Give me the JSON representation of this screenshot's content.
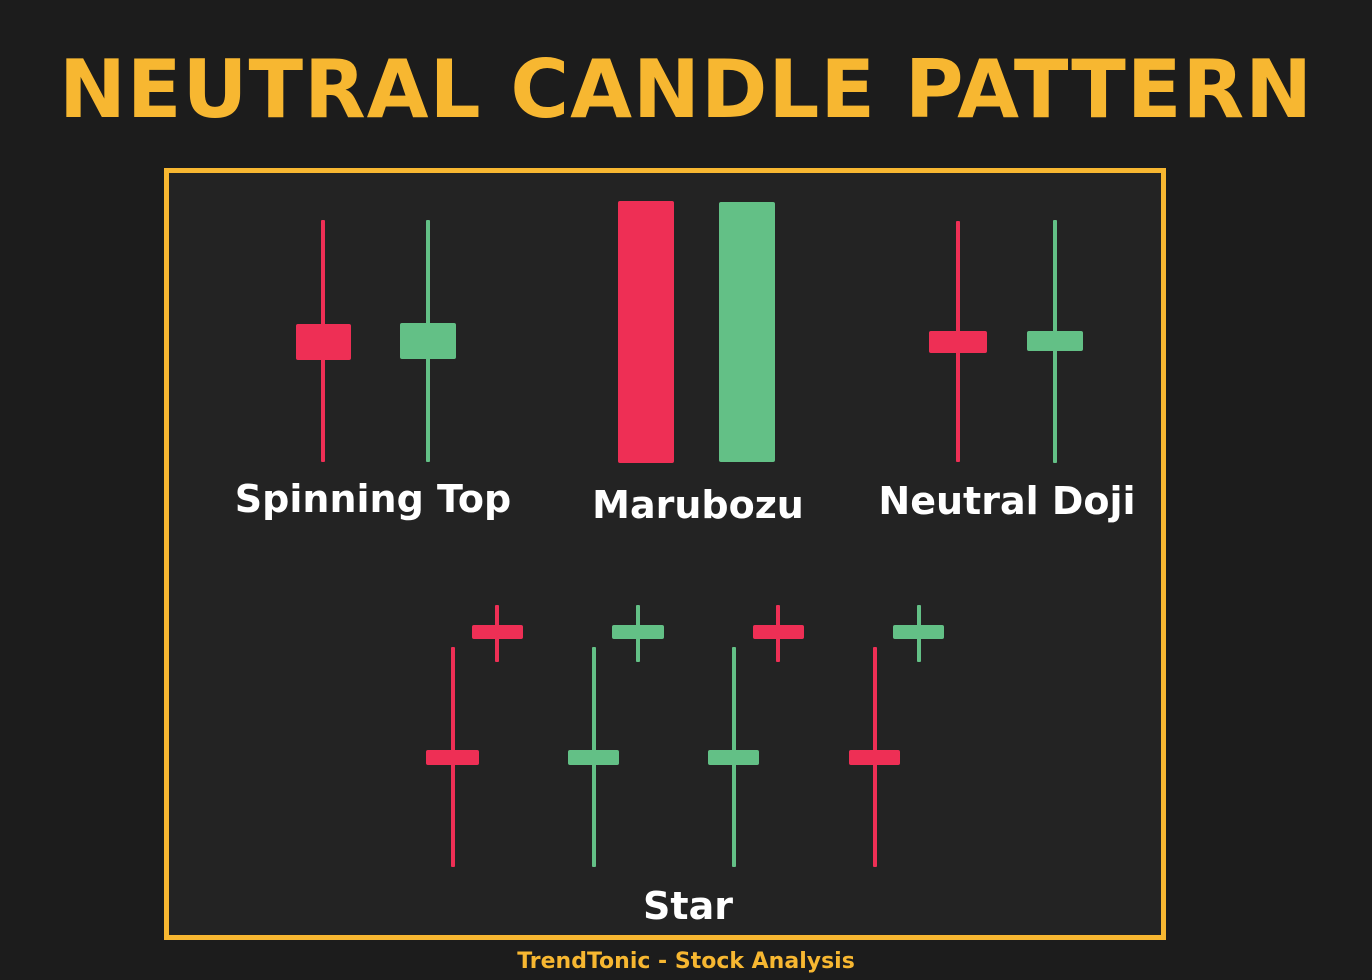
{
  "title": "NEUTRAL CANDLE PATTERN",
  "colors": {
    "accent": "#f7b731",
    "bearish": "#ee2f55",
    "bullish": "#63c086",
    "background": "#1c1c1c",
    "panel": "#232323"
  },
  "patterns": [
    {
      "label": "Spinning Top"
    },
    {
      "label": "Marubozu"
    },
    {
      "label": "Neutral Doji"
    },
    {
      "label": "Star"
    }
  ],
  "footer": "TrendTonic - Stock Analysis"
}
